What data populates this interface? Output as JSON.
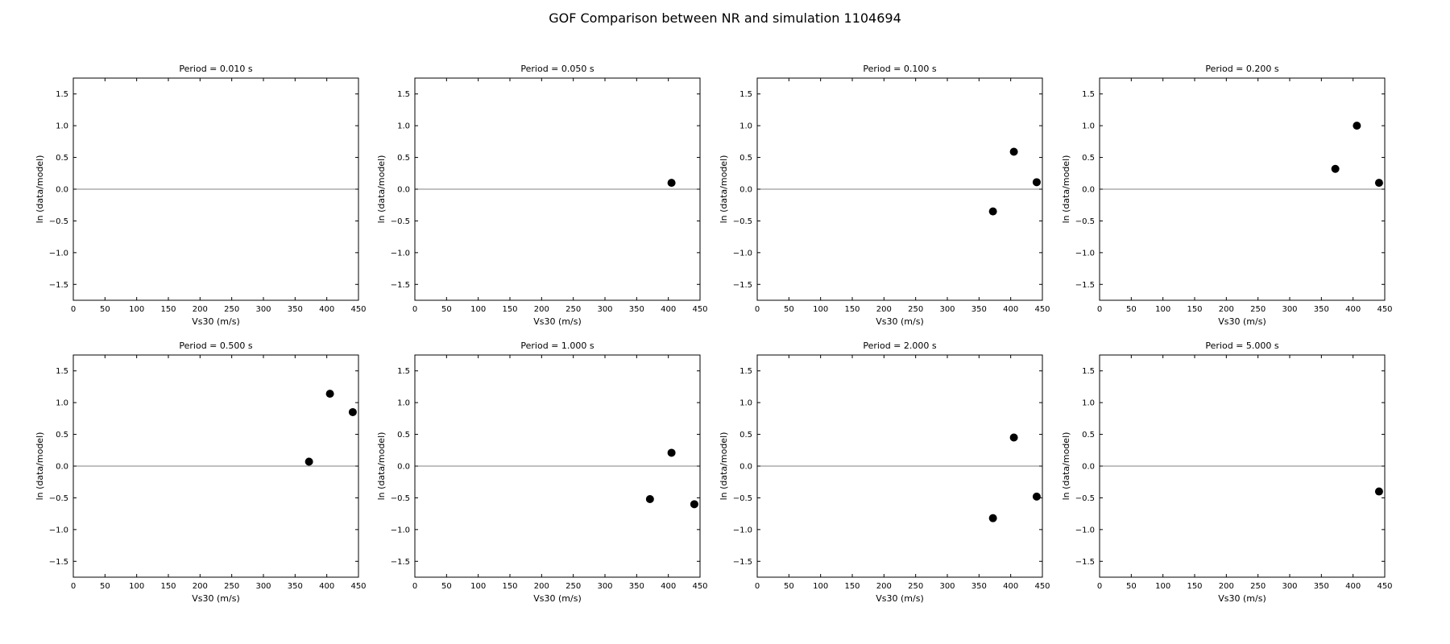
{
  "figure": {
    "suptitle": "GOF Comparison between NR and simulation 1104694"
  },
  "chart_data": [
    {
      "type": "scatter",
      "title": "Period = 0.010 s",
      "xlabel": "Vs30 (m/s)",
      "ylabel": "ln (data/model)",
      "xlim": [
        0,
        450
      ],
      "ylim": [
        -1.75,
        1.75
      ],
      "xticks": [
        0,
        50,
        100,
        150,
        200,
        250,
        300,
        350,
        400,
        450
      ],
      "yticks": [
        -1.5,
        -1.0,
        -0.5,
        0.0,
        0.5,
        1.0,
        1.5
      ],
      "reference_line": 0,
      "grid": false,
      "points": []
    },
    {
      "type": "scatter",
      "title": "Period = 0.050 s",
      "xlabel": "Vs30 (m/s)",
      "ylabel": "ln (data/model)",
      "xlim": [
        0,
        450
      ],
      "ylim": [
        -1.75,
        1.75
      ],
      "xticks": [
        0,
        50,
        100,
        150,
        200,
        250,
        300,
        350,
        400,
        450
      ],
      "yticks": [
        -1.5,
        -1.0,
        -0.5,
        0.0,
        0.5,
        1.0,
        1.5
      ],
      "reference_line": 0,
      "grid": false,
      "points": [
        {
          "x": 405,
          "y": 0.1
        }
      ]
    },
    {
      "type": "scatter",
      "title": "Period = 0.100 s",
      "xlabel": "Vs30 (m/s)",
      "ylabel": "ln (data/model)",
      "xlim": [
        0,
        450
      ],
      "ylim": [
        -1.75,
        1.75
      ],
      "xticks": [
        0,
        50,
        100,
        150,
        200,
        250,
        300,
        350,
        400,
        450
      ],
      "yticks": [
        -1.5,
        -1.0,
        -0.5,
        0.0,
        0.5,
        1.0,
        1.5
      ],
      "reference_line": 0,
      "grid": false,
      "points": [
        {
          "x": 372,
          "y": -0.35
        },
        {
          "x": 405,
          "y": 0.59
        },
        {
          "x": 441,
          "y": 0.11
        }
      ]
    },
    {
      "type": "scatter",
      "title": "Period = 0.200 s",
      "xlabel": "Vs30 (m/s)",
      "ylabel": "ln (data/model)",
      "xlim": [
        0,
        450
      ],
      "ylim": [
        -1.75,
        1.75
      ],
      "xticks": [
        0,
        50,
        100,
        150,
        200,
        250,
        300,
        350,
        400,
        450
      ],
      "yticks": [
        -1.5,
        -1.0,
        -0.5,
        0.0,
        0.5,
        1.0,
        1.5
      ],
      "reference_line": 0,
      "grid": false,
      "points": [
        {
          "x": 372,
          "y": 0.32
        },
        {
          "x": 406,
          "y": 1.0
        },
        {
          "x": 441,
          "y": 0.1
        }
      ]
    },
    {
      "type": "scatter",
      "title": "Period = 0.500 s",
      "xlabel": "Vs30 (m/s)",
      "ylabel": "ln (data/model)",
      "xlim": [
        0,
        450
      ],
      "ylim": [
        -1.75,
        1.75
      ],
      "xticks": [
        0,
        50,
        100,
        150,
        200,
        250,
        300,
        350,
        400,
        450
      ],
      "yticks": [
        -1.5,
        -1.0,
        -0.5,
        0.0,
        0.5,
        1.0,
        1.5
      ],
      "reference_line": 0,
      "grid": false,
      "points": [
        {
          "x": 372,
          "y": 0.07
        },
        {
          "x": 405,
          "y": 1.14
        },
        {
          "x": 441,
          "y": 0.85
        }
      ]
    },
    {
      "type": "scatter",
      "title": "Period = 1.000 s",
      "xlabel": "Vs30 (m/s)",
      "ylabel": "ln (data/model)",
      "xlim": [
        0,
        450
      ],
      "ylim": [
        -1.75,
        1.75
      ],
      "xticks": [
        0,
        50,
        100,
        150,
        200,
        250,
        300,
        350,
        400,
        450
      ],
      "yticks": [
        -1.5,
        -1.0,
        -0.5,
        0.0,
        0.5,
        1.0,
        1.5
      ],
      "reference_line": 0,
      "grid": false,
      "points": [
        {
          "x": 371,
          "y": -0.52
        },
        {
          "x": 405,
          "y": 0.21
        },
        {
          "x": 441,
          "y": -0.6
        }
      ]
    },
    {
      "type": "scatter",
      "title": "Period = 2.000 s",
      "xlabel": "Vs30 (m/s)",
      "ylabel": "ln (data/model)",
      "xlim": [
        0,
        450
      ],
      "ylim": [
        -1.75,
        1.75
      ],
      "xticks": [
        0,
        50,
        100,
        150,
        200,
        250,
        300,
        350,
        400,
        450
      ],
      "yticks": [
        -1.5,
        -1.0,
        -0.5,
        0.0,
        0.5,
        1.0,
        1.5
      ],
      "reference_line": 0,
      "grid": false,
      "points": [
        {
          "x": 372,
          "y": -0.82
        },
        {
          "x": 405,
          "y": 0.45
        },
        {
          "x": 441,
          "y": -0.48
        }
      ]
    },
    {
      "type": "scatter",
      "title": "Period = 5.000 s",
      "xlabel": "Vs30 (m/s)",
      "ylabel": "ln (data/model)",
      "xlim": [
        0,
        450
      ],
      "ylim": [
        -1.75,
        1.75
      ],
      "xticks": [
        0,
        50,
        100,
        150,
        200,
        250,
        300,
        350,
        400,
        450
      ],
      "yticks": [
        -1.5,
        -1.0,
        -0.5,
        0.0,
        0.5,
        1.0,
        1.5
      ],
      "reference_line": 0,
      "grid": false,
      "points": [
        {
          "x": 441,
          "y": -0.4
        }
      ]
    }
  ]
}
